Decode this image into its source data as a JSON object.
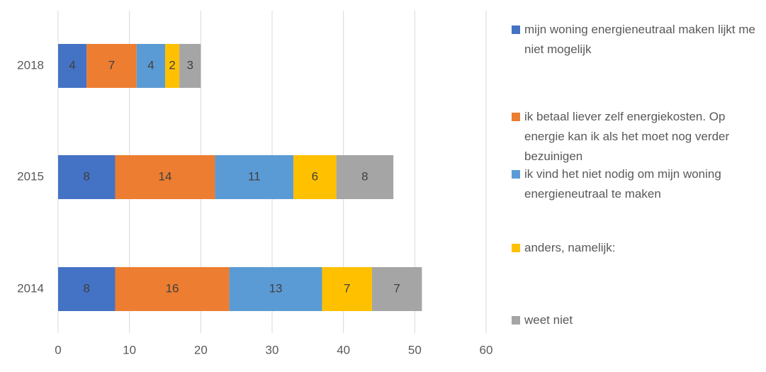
{
  "chart_data": {
    "type": "stacked_barh",
    "categories": [
      "2018",
      "2015",
      "2014"
    ],
    "series": [
      {
        "name": "mijn woning energieneutraal maken lijkt me niet mogelijk",
        "color": "#4472c4",
        "values": [
          4,
          8,
          8
        ]
      },
      {
        "name": "ik betaal liever zelf energiekosten. Op energie kan ik als het moet nog verder bezuinigen",
        "color": "#ed7d31",
        "values": [
          7,
          14,
          16
        ]
      },
      {
        "name": "ik vind het niet nodig om mijn woning energieneutraal te maken",
        "color": "#5b9bd5",
        "values": [
          4,
          11,
          13
        ]
      },
      {
        "name": "anders, namelijk:",
        "color": "#ffc000",
        "values": [
          2,
          6,
          7
        ]
      },
      {
        "name": "weet niet",
        "color": "#a5a5a5",
        "values": [
          3,
          8,
          7
        ]
      }
    ],
    "xlim": [
      0,
      60
    ],
    "xticks": [
      0,
      10,
      20,
      30,
      40,
      50,
      60
    ],
    "grid": true,
    "legend": "right"
  }
}
